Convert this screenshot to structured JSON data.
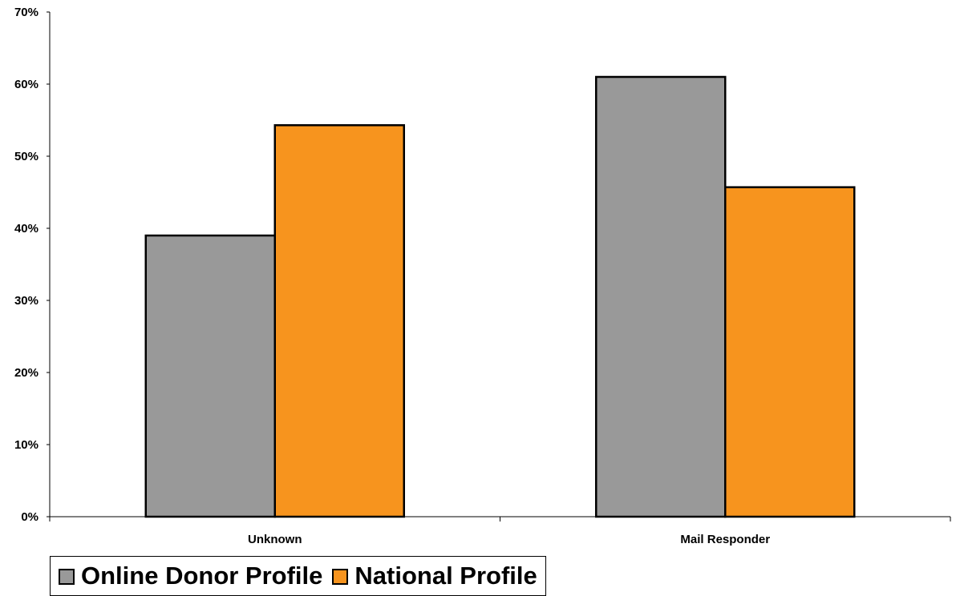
{
  "chart_data": {
    "type": "bar",
    "categories": [
      "Unknown",
      "Mail Responder"
    ],
    "series": [
      {
        "name": "Online Donor Profile",
        "values": [
          39,
          61
        ],
        "color": "#999999"
      },
      {
        "name": "National Profile",
        "values": [
          54.3,
          45.7
        ],
        "color": "#F7941E"
      }
    ],
    "yticks": [
      "0%",
      "10%",
      "20%",
      "30%",
      "40%",
      "50%",
      "60%",
      "70%"
    ],
    "ylim": [
      0,
      70
    ],
    "title": "",
    "xlabel": "",
    "ylabel": "",
    "grid": false,
    "legend_position": "bottom-left"
  }
}
